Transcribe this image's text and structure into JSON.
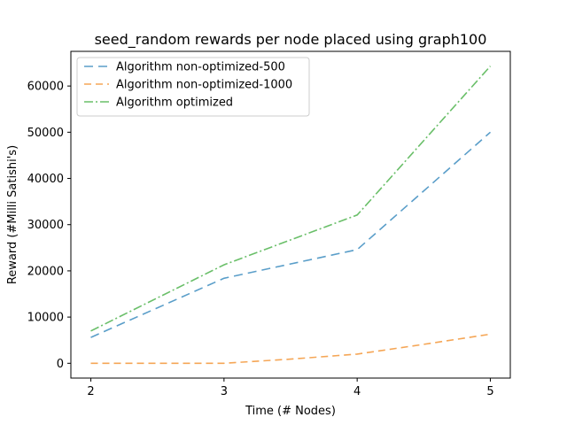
{
  "chart_data": {
    "type": "line",
    "title": "seed_random rewards per node placed using graph100",
    "xlabel": "Time (# Nodes)",
    "ylabel": "Reward (#Milli Satishi's)",
    "x": [
      2,
      3,
      4,
      5
    ],
    "xticks": [
      "2",
      "3",
      "4",
      "5"
    ],
    "xlim": [
      1.85,
      5.15
    ],
    "ylim": [
      -3200,
      67500
    ],
    "yticks": [
      0,
      10000,
      20000,
      30000,
      40000,
      50000,
      60000
    ],
    "ytick_labels": [
      "0",
      "10000",
      "20000",
      "30000",
      "40000",
      "50000",
      "60000"
    ],
    "grid": false,
    "legend_position": "upper-left",
    "series": [
      {
        "name": "Algorithm non-optimized-500",
        "x": [
          2,
          3,
          4,
          5
        ],
        "values": [
          5600,
          18400,
          24600,
          50000
        ],
        "color": "#5a9ec9",
        "dash": "long-dash"
      },
      {
        "name": "Algorithm non-optimized-1000",
        "x": [
          2,
          2.5,
          3,
          3.5,
          4,
          4.5,
          5
        ],
        "values": [
          0,
          0,
          0,
          900,
          2000,
          4100,
          6300
        ],
        "color": "#f5a656",
        "dash": "dash"
      },
      {
        "name": "Algorithm optimized",
        "x": [
          2,
          3,
          4,
          5
        ],
        "values": [
          7000,
          21300,
          32100,
          64300
        ],
        "color": "#6abf69",
        "dash": "dash-dot"
      }
    ]
  }
}
